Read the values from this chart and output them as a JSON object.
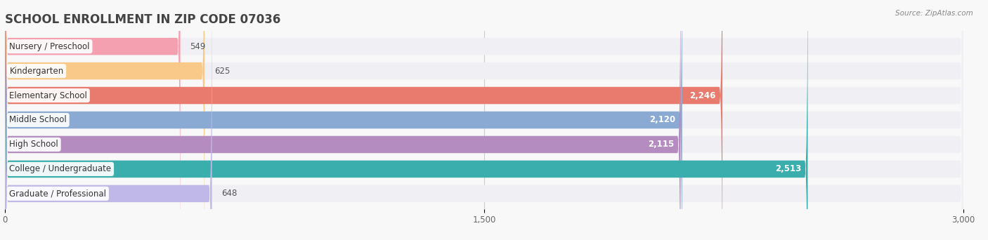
{
  "title": "SCHOOL ENROLLMENT IN ZIP CODE 07036",
  "source": "Source: ZipAtlas.com",
  "categories": [
    "Nursery / Preschool",
    "Kindergarten",
    "Elementary School",
    "Middle School",
    "High School",
    "College / Undergraduate",
    "Graduate / Professional"
  ],
  "values": [
    549,
    625,
    2246,
    2120,
    2115,
    2513,
    648
  ],
  "bar_colors": [
    "#f4a0b0",
    "#f9c98a",
    "#e87b6e",
    "#8aaad4",
    "#b48cc0",
    "#3aadad",
    "#c0b8e8"
  ],
  "bar_bg_colors": [
    "#f0f0f4",
    "#f0f0f4",
    "#f0f0f4",
    "#f0f0f4",
    "#f0f0f4",
    "#f0f0f4",
    "#f0f0f4"
  ],
  "xlim": [
    0,
    3000
  ],
  "xticks": [
    0,
    1500,
    3000
  ],
  "value_threshold": 1000,
  "background_color": "#f8f8f8"
}
